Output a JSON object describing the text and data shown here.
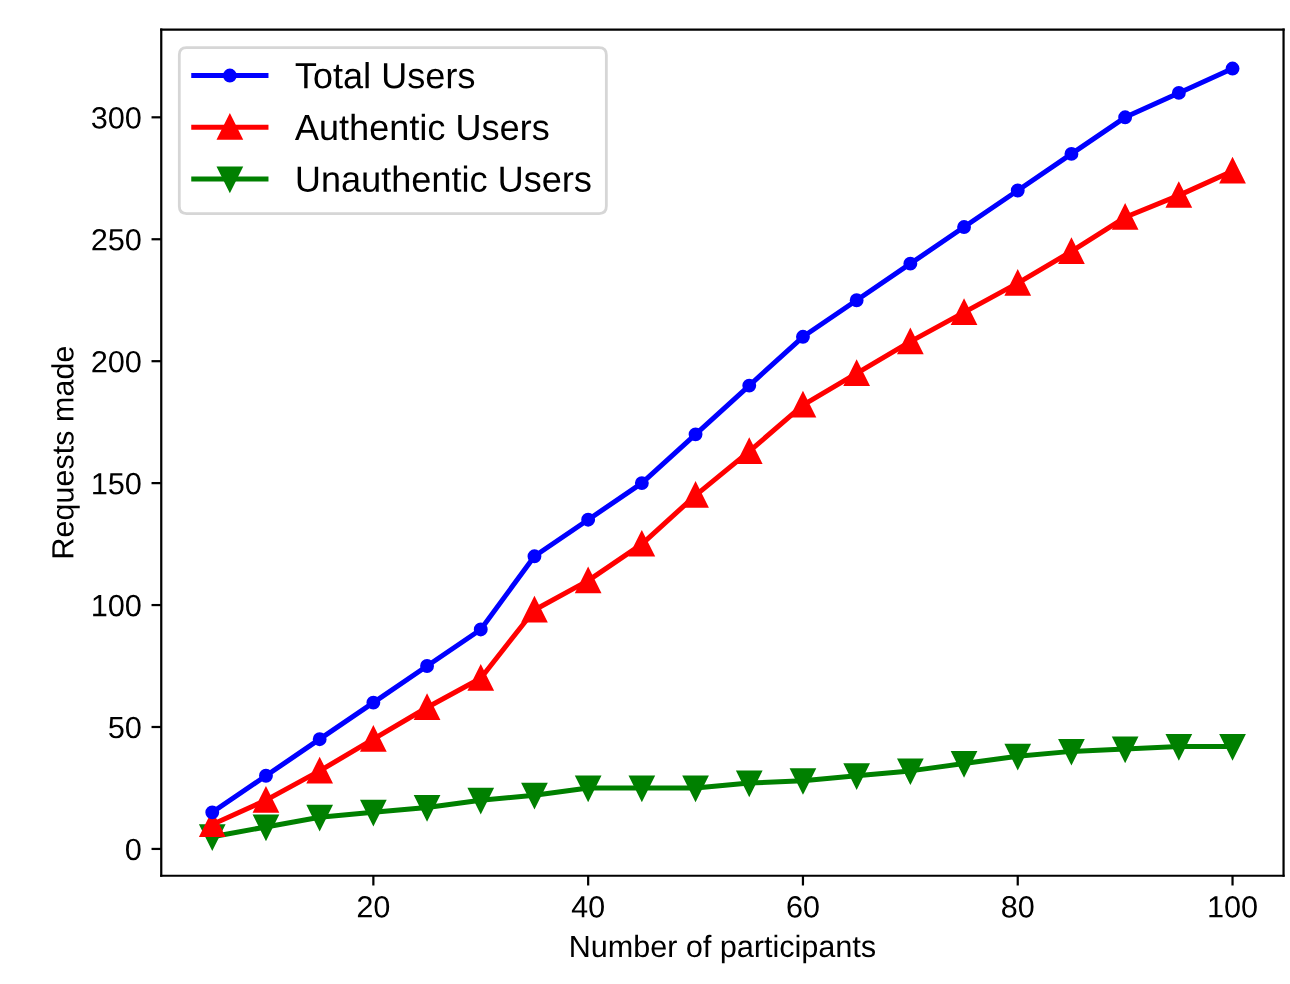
{
  "chart_data": {
    "type": "line",
    "xlabel": "Number of participants",
    "ylabel": "Requests made",
    "x": [
      5,
      10,
      15,
      20,
      25,
      30,
      35,
      40,
      45,
      50,
      55,
      60,
      65,
      70,
      75,
      80,
      85,
      90,
      95,
      100
    ],
    "xlim": [
      0.25,
      104.75
    ],
    "xticks": [
      20,
      40,
      60,
      80,
      100
    ],
    "ylim": [
      -11,
      336
    ],
    "yticks": [
      0,
      50,
      100,
      150,
      200,
      250,
      300
    ],
    "grid": false,
    "legend": "top left",
    "series": [
      {
        "name": "Total Users",
        "color": "#0000ff",
        "marker": "circle",
        "values": [
          15,
          30,
          45,
          60,
          75,
          90,
          120,
          135,
          150,
          170,
          190,
          210,
          225,
          240,
          255,
          270,
          285,
          300,
          310,
          320
        ]
      },
      {
        "name": "Authentic Users",
        "color": "#ff0000",
        "marker": "triangle",
        "values": [
          10,
          20,
          32,
          45,
          58,
          70,
          98,
          110,
          125,
          145,
          163,
          182,
          195,
          208,
          220,
          232,
          245,
          259,
          268,
          278
        ]
      },
      {
        "name": "Unauthentic Users",
        "color": "#008000",
        "marker": "triangle_down",
        "values": [
          5,
          9,
          13,
          15,
          17,
          20,
          22,
          25,
          25,
          25,
          27,
          28,
          30,
          32,
          35,
          38,
          40,
          41,
          42,
          42
        ]
      }
    ]
  }
}
